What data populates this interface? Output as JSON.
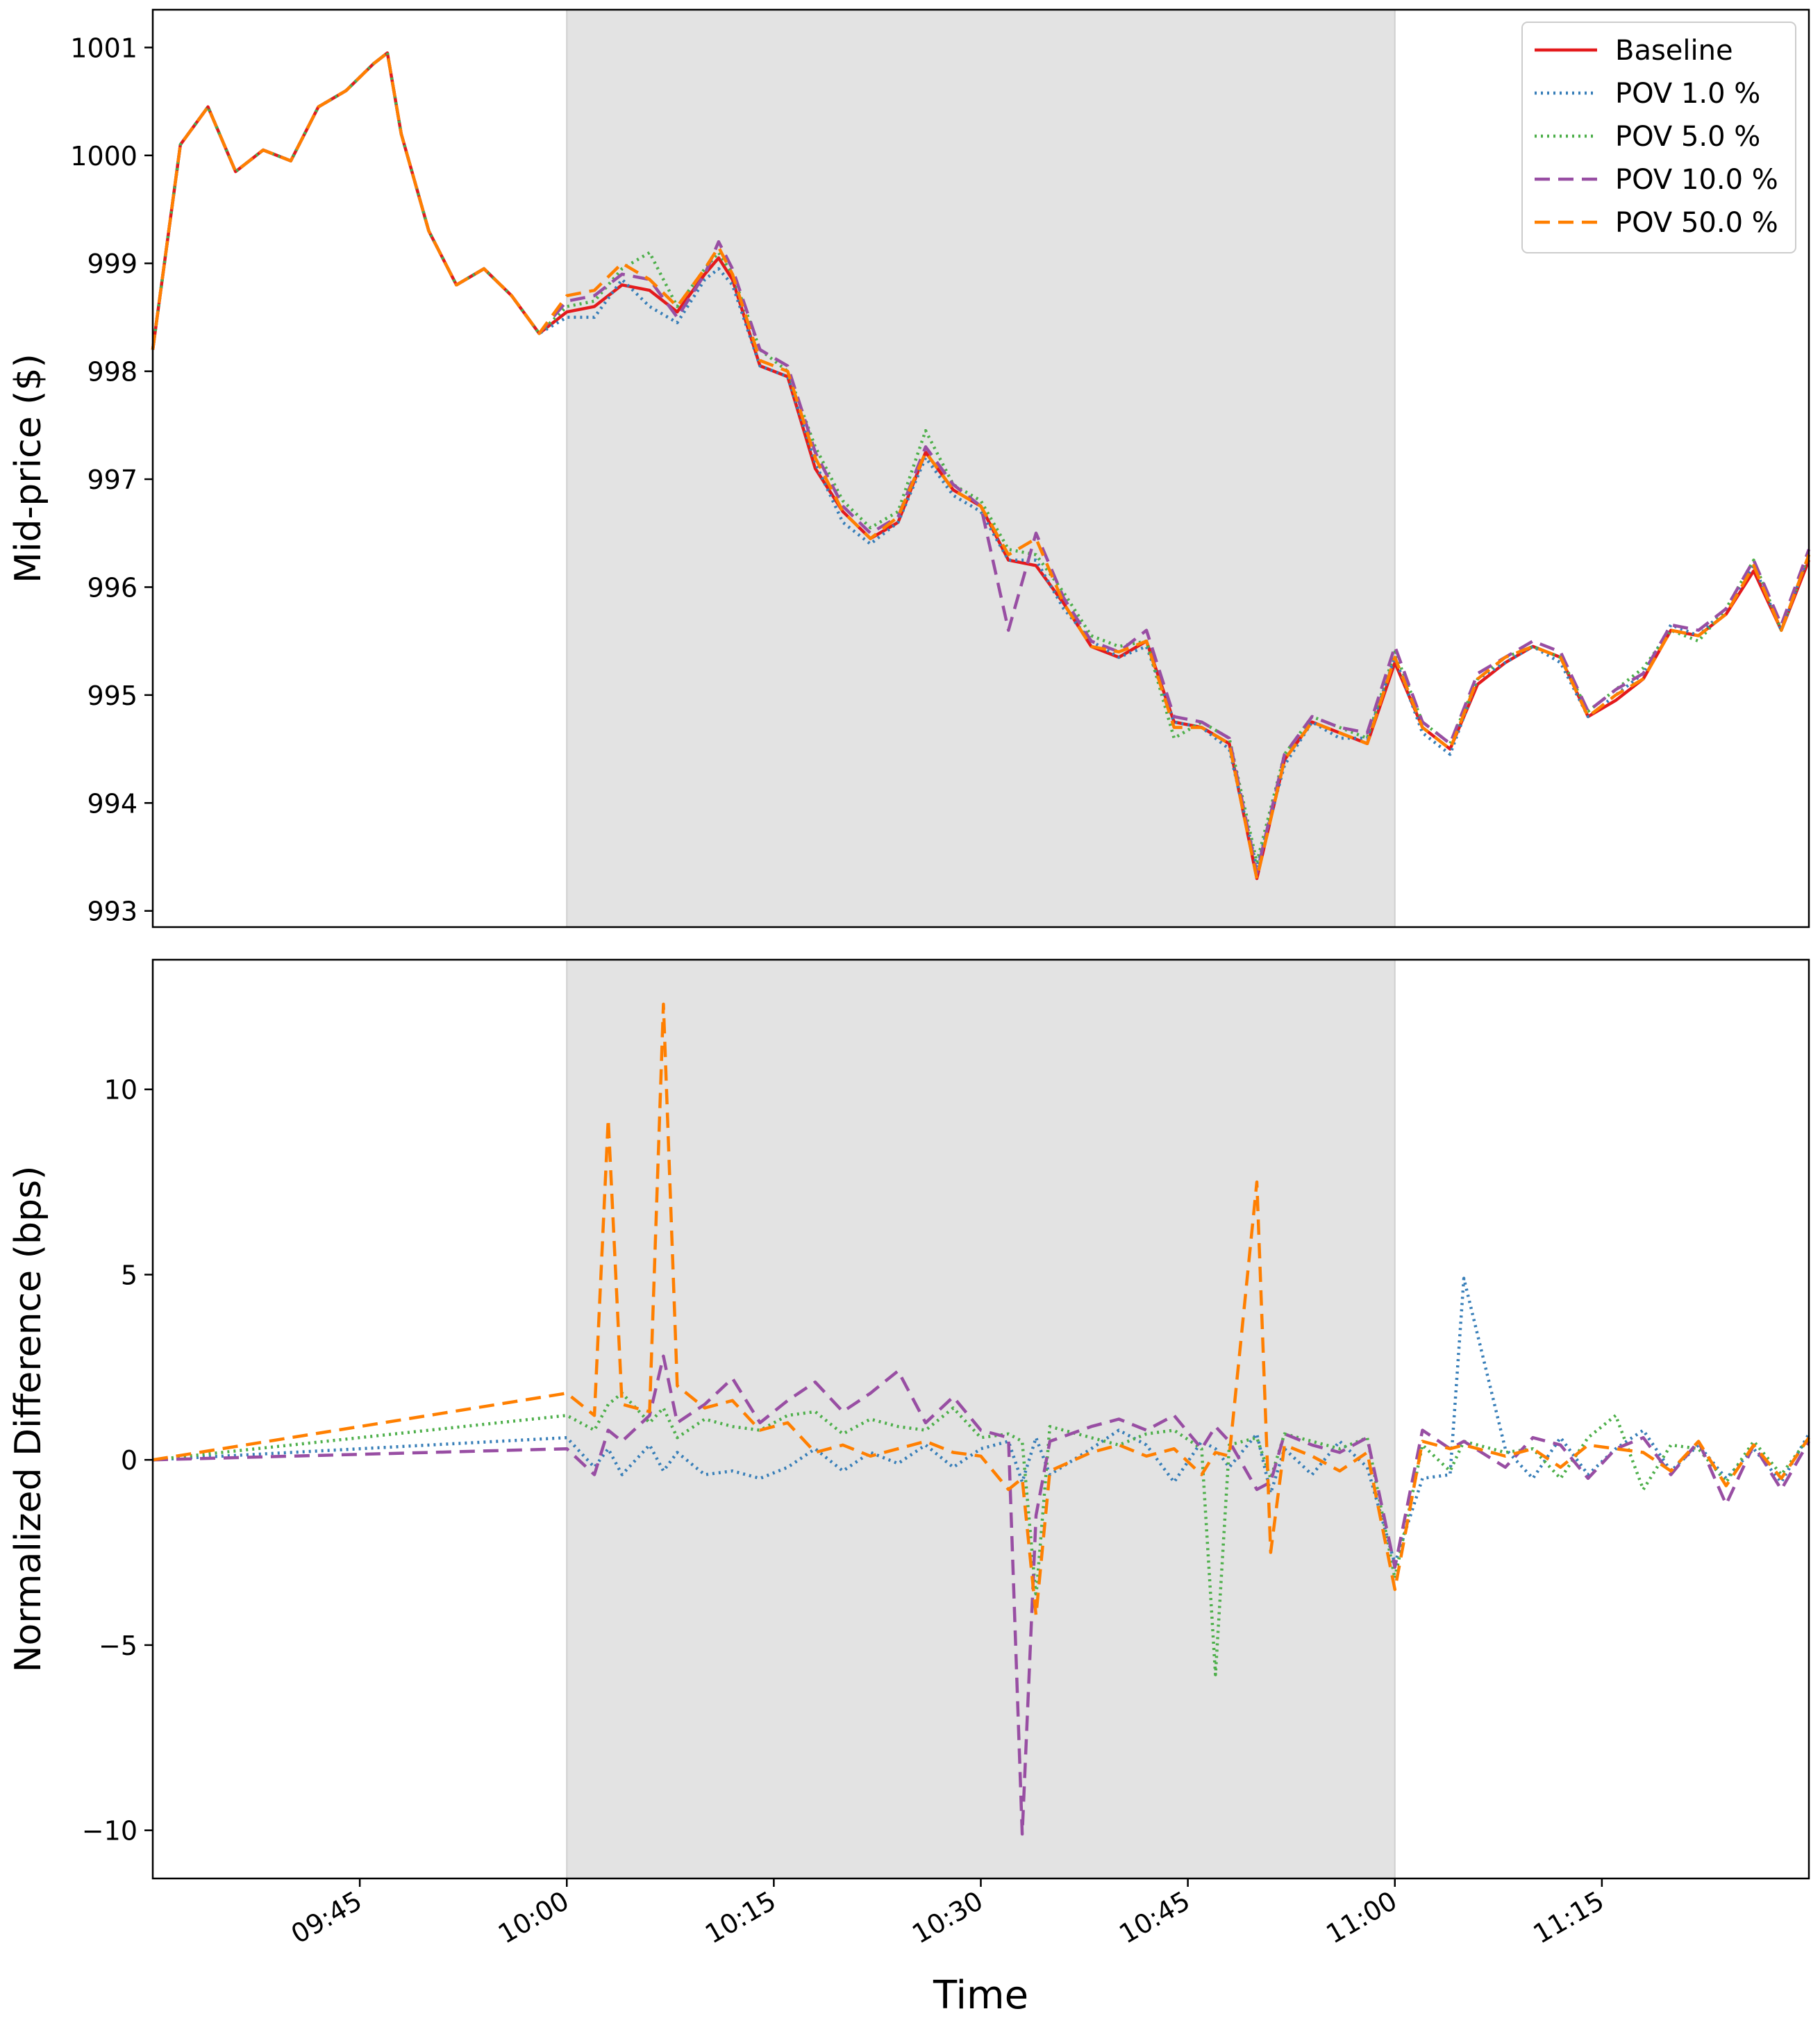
{
  "figure": {
    "xlabel": "Time"
  },
  "x_ticks": [
    "09:45",
    "10:00",
    "10:15",
    "10:30",
    "10:45",
    "11:00",
    "11:15"
  ],
  "legend_entries": [
    {
      "label": "Baseline",
      "color": "#e41a1c",
      "style": "solid"
    },
    {
      "label": "POV 1.0 %",
      "color": "#377eb8",
      "style": "dotted"
    },
    {
      "label": "POV 5.0 %",
      "color": "#4daf4a",
      "style": "dotted"
    },
    {
      "label": "POV 10.0 %",
      "color": "#984ea3",
      "style": "dashed"
    },
    {
      "label": "POV 50.0 %",
      "color": "#ff7f00",
      "style": "dashed"
    }
  ],
  "chart_data": [
    {
      "type": "line",
      "panel": "top",
      "title": "",
      "ylabel": "Mid-price ($)",
      "xlabel": "",
      "x_range": [
        "09:30",
        "11:30"
      ],
      "ylim": [
        992.85,
        1001.35
      ],
      "yticks": [
        993,
        994,
        995,
        996,
        997,
        998,
        999,
        1000,
        1001
      ],
      "shaded_region": [
        "10:00",
        "11:00"
      ],
      "legend_position": "upper right",
      "grid": false,
      "x": [
        "09:30",
        "09:32",
        "09:34",
        "09:36",
        "09:38",
        "09:40",
        "09:42",
        "09:44",
        "09:46",
        "09:47",
        "09:48",
        "09:50",
        "09:52",
        "09:54",
        "09:56",
        "09:58",
        "10:00",
        "10:02",
        "10:04",
        "10:06",
        "10:08",
        "10:10",
        "10:11",
        "10:12",
        "10:14",
        "10:16",
        "10:18",
        "10:20",
        "10:22",
        "10:24",
        "10:26",
        "10:28",
        "10:30",
        "10:32",
        "10:34",
        "10:36",
        "10:38",
        "10:40",
        "10:42",
        "10:44",
        "10:46",
        "10:48",
        "10:50",
        "10:52",
        "10:54",
        "10:56",
        "10:58",
        "11:00",
        "11:02",
        "11:04",
        "11:06",
        "11:08",
        "11:10",
        "11:12",
        "11:14",
        "11:16",
        "11:18",
        "11:20",
        "11:22",
        "11:24",
        "11:26",
        "11:28",
        "11:30"
      ],
      "series": [
        {
          "name": "Baseline",
          "values": [
            998.2,
            1000.1,
            1000.45,
            999.85,
            1000.05,
            999.95,
            1000.45,
            1000.6,
            1000.85,
            1000.95,
            1000.2,
            999.3,
            998.8,
            998.95,
            998.7,
            998.35,
            998.55,
            998.6,
            998.8,
            998.75,
            998.55,
            998.9,
            999.05,
            998.85,
            998.05,
            997.95,
            997.1,
            996.7,
            996.45,
            996.6,
            997.25,
            996.9,
            996.75,
            996.25,
            996.2,
            995.85,
            995.45,
            995.35,
            995.5,
            994.75,
            994.7,
            994.55,
            993.3,
            994.4,
            994.75,
            994.65,
            994.55,
            995.3,
            994.7,
            994.5,
            995.1,
            995.3,
            995.45,
            995.35,
            994.8,
            994.95,
            995.15,
            995.6,
            995.55,
            995.75,
            996.15,
            995.6,
            996.25
          ]
        },
        {
          "name": "POV 1.0 %",
          "values": [
            998.2,
            1000.1,
            1000.45,
            999.85,
            1000.05,
            999.95,
            1000.45,
            1000.6,
            1000.85,
            1000.95,
            1000.2,
            999.3,
            998.8,
            998.95,
            998.7,
            998.35,
            998.5,
            998.5,
            998.85,
            998.6,
            998.45,
            998.85,
            998.95,
            998.8,
            998.05,
            997.95,
            997.15,
            996.6,
            996.4,
            996.6,
            997.2,
            996.85,
            996.7,
            996.25,
            996.25,
            995.8,
            995.5,
            995.35,
            995.45,
            994.75,
            994.7,
            994.5,
            993.4,
            994.35,
            994.75,
            994.6,
            994.6,
            995.35,
            994.65,
            994.45,
            995.15,
            995.3,
            995.45,
            995.3,
            994.8,
            995.0,
            995.2,
            995.65,
            995.55,
            995.8,
            996.2,
            995.6,
            996.3
          ]
        },
        {
          "name": "POV 5.0 %",
          "values": [
            998.2,
            1000.1,
            1000.45,
            999.85,
            1000.05,
            999.95,
            1000.45,
            1000.6,
            1000.85,
            1000.95,
            1000.2,
            999.3,
            998.8,
            998.95,
            998.7,
            998.35,
            998.6,
            998.65,
            998.95,
            999.1,
            998.6,
            998.95,
            999.1,
            998.9,
            998.2,
            998.0,
            997.3,
            996.8,
            996.55,
            996.7,
            997.45,
            996.95,
            996.8,
            996.35,
            996.3,
            995.95,
            995.55,
            995.45,
            995.5,
            994.6,
            994.75,
            994.6,
            993.45,
            994.45,
            994.8,
            994.7,
            994.6,
            995.4,
            994.75,
            994.55,
            995.15,
            995.35,
            995.45,
            995.35,
            994.85,
            995.05,
            995.25,
            995.6,
            995.5,
            995.8,
            996.25,
            995.6,
            996.3
          ]
        },
        {
          "name": "POV 10.0 %",
          "values": [
            998.2,
            1000.1,
            1000.45,
            999.85,
            1000.05,
            999.95,
            1000.45,
            1000.6,
            1000.85,
            1000.95,
            1000.2,
            999.3,
            998.8,
            998.95,
            998.7,
            998.35,
            998.65,
            998.7,
            998.9,
            998.85,
            998.5,
            998.9,
            999.2,
            998.95,
            998.2,
            998.05,
            997.25,
            996.75,
            996.5,
            996.65,
            997.3,
            996.95,
            996.75,
            995.6,
            996.5,
            995.9,
            995.5,
            995.4,
            995.6,
            994.8,
            994.75,
            994.6,
            993.35,
            994.45,
            994.8,
            994.7,
            994.65,
            995.45,
            994.75,
            994.55,
            995.2,
            995.35,
            995.5,
            995.4,
            994.85,
            995.05,
            995.2,
            995.65,
            995.6,
            995.8,
            996.25,
            995.65,
            996.35
          ]
        },
        {
          "name": "POV 50.0 %",
          "values": [
            998.2,
            1000.1,
            1000.45,
            999.85,
            1000.05,
            999.95,
            1000.45,
            1000.6,
            1000.85,
            1000.95,
            1000.2,
            999.3,
            998.8,
            998.95,
            998.7,
            998.35,
            998.7,
            998.75,
            999.0,
            998.85,
            998.6,
            998.95,
            999.15,
            998.9,
            998.1,
            998.0,
            997.2,
            996.7,
            996.45,
            996.65,
            997.25,
            996.9,
            996.75,
            996.3,
            996.45,
            995.85,
            995.45,
            995.4,
            995.5,
            994.7,
            994.7,
            994.55,
            993.3,
            994.4,
            994.75,
            994.65,
            994.55,
            995.35,
            994.7,
            994.5,
            995.15,
            995.35,
            995.45,
            995.35,
            994.8,
            995.0,
            995.15,
            995.6,
            995.55,
            995.75,
            996.2,
            995.6,
            996.3
          ]
        }
      ]
    },
    {
      "type": "line",
      "panel": "bottom",
      "title": "",
      "ylabel": "Normalized Difference (bps)",
      "xlabel": "Time",
      "x_range": [
        "09:30",
        "11:30"
      ],
      "ylim": [
        -11.3,
        13.5
      ],
      "yticks": [
        -10,
        -5,
        0,
        5,
        10
      ],
      "shaded_region": [
        "10:00",
        "11:00"
      ],
      "grid": false,
      "x": [
        "09:30",
        "10:00",
        "10:02",
        "10:03",
        "10:04",
        "10:06",
        "10:07",
        "10:08",
        "10:10",
        "10:12",
        "10:14",
        "10:16",
        "10:18",
        "10:20",
        "10:22",
        "10:24",
        "10:26",
        "10:28",
        "10:30",
        "10:32",
        "10:33",
        "10:34",
        "10:35",
        "10:38",
        "10:40",
        "10:42",
        "10:44",
        "10:46",
        "10:47",
        "10:48",
        "10:50",
        "10:51",
        "10:52",
        "10:54",
        "10:56",
        "10:58",
        "11:00",
        "11:02",
        "11:04",
        "11:05",
        "11:08",
        "11:10",
        "11:12",
        "11:14",
        "11:16",
        "11:18",
        "11:20",
        "11:22",
        "11:24",
        "11:26",
        "11:28",
        "11:30"
      ],
      "series": [
        {
          "name": "POV 1.0 %",
          "values": [
            0,
            0.6,
            -0.2,
            0.3,
            -0.4,
            0.4,
            -0.3,
            0.2,
            -0.4,
            -0.3,
            -0.5,
            -0.2,
            0.3,
            -0.3,
            0.2,
            -0.1,
            0.4,
            -0.2,
            0.3,
            0.5,
            -0.6,
            0.6,
            -0.4,
            0.3,
            0.8,
            0.4,
            -0.6,
            0.5,
            0.3,
            -0.2,
            0.7,
            -0.9,
            0.3,
            -0.4,
            0.5,
            -0.2,
            -2.8,
            -0.5,
            -0.4,
            4.9,
            0.3,
            -0.5,
            0.6,
            -0.4,
            0.3,
            0.8,
            -0.3,
            0.4,
            -0.5,
            0.3,
            -0.6,
            0.7
          ]
        },
        {
          "name": "POV 5.0 %",
          "values": [
            0,
            1.2,
            0.8,
            1.5,
            1.8,
            1.0,
            1.4,
            0.6,
            1.1,
            0.9,
            0.8,
            1.2,
            1.3,
            0.7,
            1.1,
            0.9,
            0.8,
            1.4,
            0.6,
            0.7,
            0.5,
            -3.7,
            0.9,
            0.6,
            0.4,
            0.7,
            0.8,
            0.3,
            -5.8,
            0.4,
            0.6,
            -0.5,
            0.7,
            0.5,
            0.3,
            0.6,
            -3.2,
            0.4,
            -0.3,
            0.5,
            0.2,
            0.3,
            -0.5,
            0.6,
            1.2,
            -0.8,
            0.4,
            0.3,
            -0.6,
            0.5,
            -0.4,
            0.6
          ]
        },
        {
          "name": "POV 10.0 %",
          "values": [
            0,
            0.3,
            -0.4,
            0.8,
            0.5,
            1.2,
            2.8,
            1.0,
            1.5,
            2.2,
            1.0,
            1.6,
            2.1,
            1.3,
            1.8,
            2.4,
            1.0,
            1.7,
            0.8,
            0.6,
            -10.1,
            -1.5,
            0.5,
            0.9,
            1.1,
            0.8,
            1.2,
            0.3,
            0.9,
            0.5,
            -0.8,
            -0.6,
            0.7,
            0.4,
            0.2,
            0.6,
            -2.9,
            0.8,
            0.3,
            0.5,
            -0.2,
            0.6,
            0.4,
            -0.5,
            0.3,
            0.6,
            -0.4,
            0.5,
            -1.2,
            0.4,
            -0.8,
            0.5
          ]
        },
        {
          "name": "POV 50.0 %",
          "values": [
            0,
            1.8,
            1.2,
            9.2,
            1.5,
            1.3,
            12.3,
            2.0,
            1.4,
            1.6,
            0.8,
            1.0,
            0.2,
            0.4,
            0.1,
            0.3,
            0.5,
            0.2,
            0.1,
            -0.8,
            -0.5,
            -4.2,
            -0.3,
            0.2,
            0.4,
            0.1,
            0.3,
            -0.4,
            0.2,
            0.1,
            7.5,
            -2.5,
            0.4,
            0.1,
            -0.3,
            0.2,
            -3.5,
            0.5,
            0.3,
            0.4,
            0.1,
            0.3,
            -0.2,
            0.4,
            0.3,
            0.2,
            -0.3,
            0.5,
            -0.7,
            0.4,
            -0.5,
            0.6
          ]
        }
      ]
    }
  ]
}
